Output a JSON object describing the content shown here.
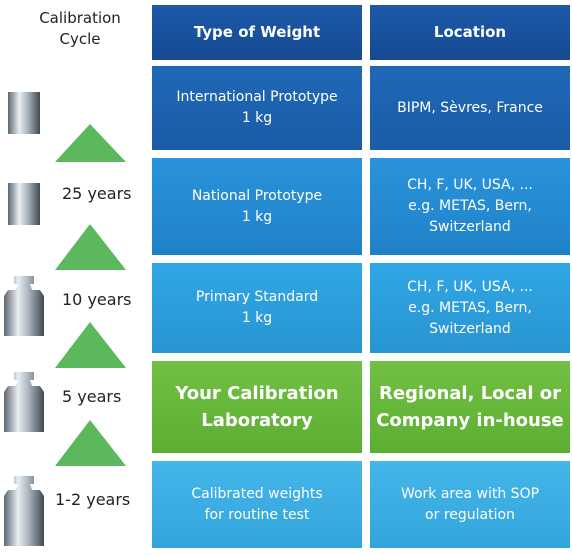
{
  "cycle_header": [
    "Calibration",
    "Cycle"
  ],
  "columns": [
    "Type of Weight",
    "Location"
  ],
  "rows": [
    {
      "type": [
        "International Prototype",
        "1 kg"
      ],
      "location": [
        "BIPM, Sèvres, France"
      ]
    },
    {
      "type": [
        "National Prototype",
        "1 kg"
      ],
      "location": [
        "CH, F, UK, USA, ...",
        "e.g. METAS, Bern,",
        "Switzerland"
      ]
    },
    {
      "type": [
        "Primary Standard",
        "1 kg"
      ],
      "location": [
        "CH, F, UK, USA, ...",
        "e.g. METAS, Bern,",
        "Switzerland"
      ]
    },
    {
      "type": [
        "Your Calibration",
        "Laboratory"
      ],
      "location": [
        "Regional, Local or",
        "Company in-house"
      ]
    },
    {
      "type": [
        "Calibrated weights",
        "for routine test"
      ],
      "location": [
        "Work area with SOP",
        "or regulation"
      ]
    }
  ],
  "cycles": [
    "25 years",
    "10 years",
    "5 years",
    "1-2 years"
  ]
}
